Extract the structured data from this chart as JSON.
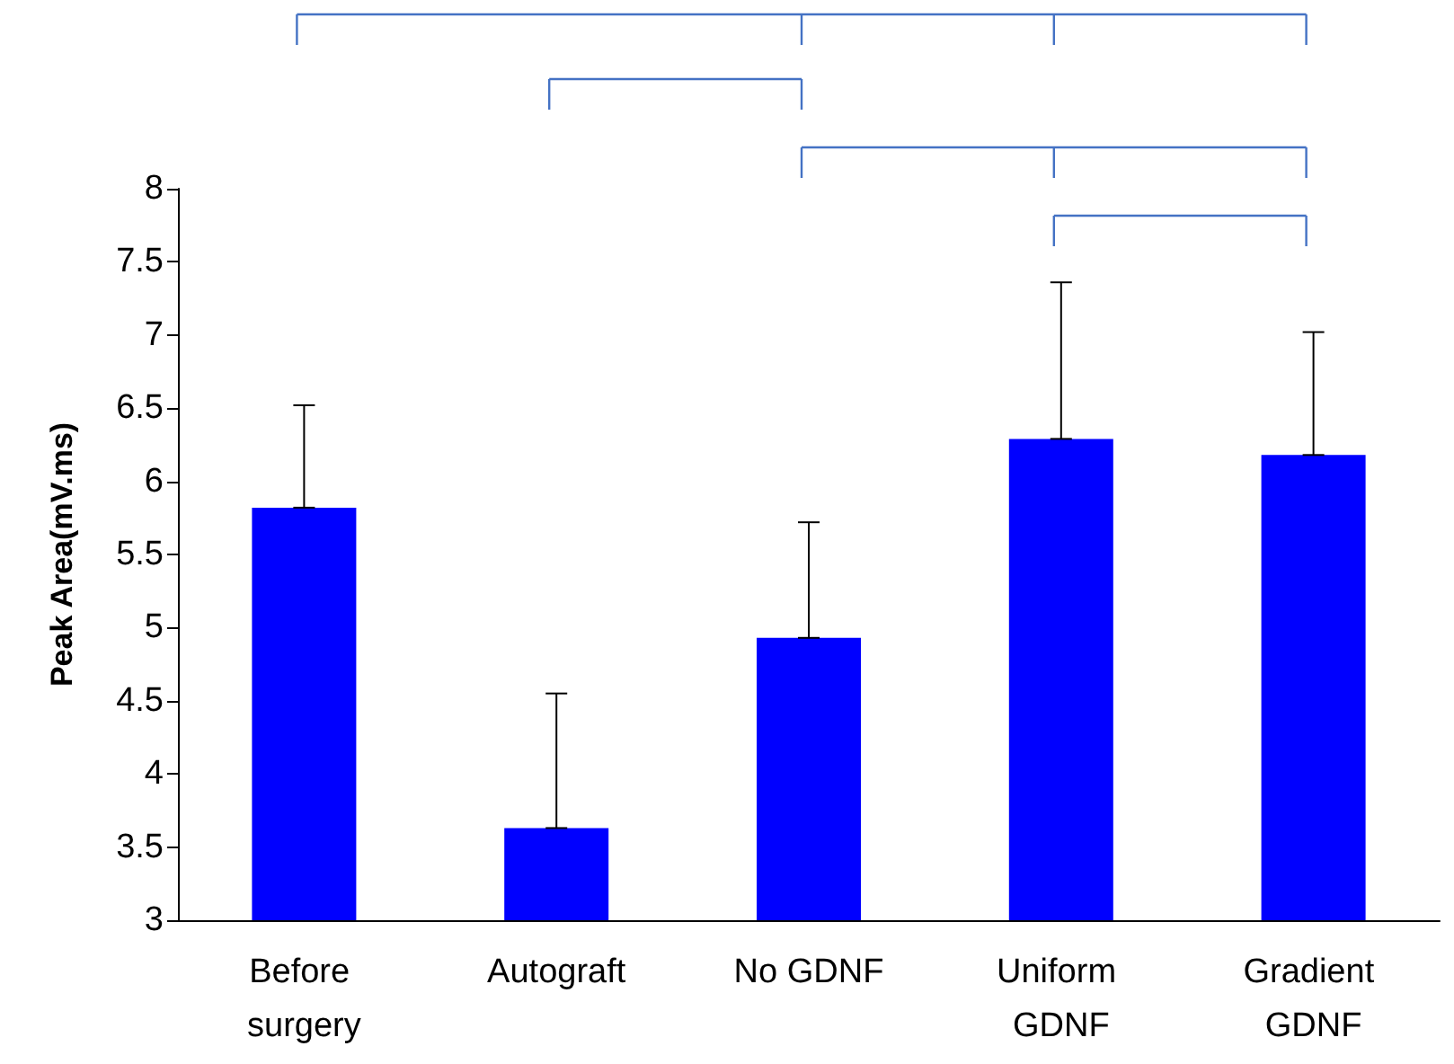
{
  "chart_data": {
    "type": "bar",
    "ylabel": "Peak Area(mV.ms)",
    "categories": [
      "Before surgery",
      "Autograft",
      "No GDNF",
      "Uniform GDNF",
      "Gradient GDNF"
    ],
    "values": [
      5.82,
      3.63,
      4.93,
      6.29,
      6.18
    ],
    "color": "#0000ff",
    "errors": [
      [
        5.82,
        6.52
      ],
      [
        3.63,
        4.55
      ],
      [
        4.93,
        5.72
      ],
      [
        6.29,
        7.36
      ],
      [
        6.18,
        7.02
      ]
    ],
    "ylim": [
      3,
      8
    ],
    "yticks": [
      3,
      3.5,
      4,
      4.5,
      5,
      5.5,
      6,
      6.5,
      7,
      7.5,
      8
    ],
    "grid": false
  }
}
